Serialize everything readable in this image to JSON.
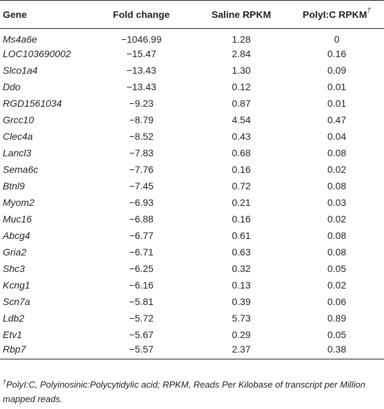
{
  "table": {
    "headers": {
      "gene": "Gene",
      "fold_change": "Fold change",
      "saline": "Saline RPKM",
      "polyic": "PolyI:C RPKM",
      "polyic_mark": "†"
    },
    "rows": [
      {
        "gene": "Ms4a6e",
        "fold": "−1046.99",
        "saline": "1.28",
        "polyic": "0"
      },
      {
        "gene": "LOC103690002",
        "fold": "−15.47",
        "saline": "2.84",
        "polyic": "0.16"
      },
      {
        "gene": "Slco1a4",
        "fold": "−13.43",
        "saline": "1.30",
        "polyic": "0.09"
      },
      {
        "gene": "Ddo",
        "fold": "−13.43",
        "saline": "0.12",
        "polyic": "0.01"
      },
      {
        "gene": "RGD1561034",
        "fold": "−9.23",
        "saline": "0.87",
        "polyic": "0.01"
      },
      {
        "gene": "Grcc10",
        "fold": "−8.79",
        "saline": "4.54",
        "polyic": "0.47"
      },
      {
        "gene": "Clec4a",
        "fold": "−8.52",
        "saline": "0.43",
        "polyic": "0.04"
      },
      {
        "gene": "Lancl3",
        "fold": "−7.83",
        "saline": "0.68",
        "polyic": "0.08"
      },
      {
        "gene": "Sema6c",
        "fold": "−7.76",
        "saline": "0.16",
        "polyic": "0.02"
      },
      {
        "gene": "Btnl9",
        "fold": "−7.45",
        "saline": "0.72",
        "polyic": "0.08"
      },
      {
        "gene": "Myom2",
        "fold": "−6.93",
        "saline": "0.21",
        "polyic": "0.03"
      },
      {
        "gene": "Muc16",
        "fold": "−6.88",
        "saline": "0.16",
        "polyic": "0.02"
      },
      {
        "gene": "Abcg4",
        "fold": "−6.77",
        "saline": "0.61",
        "polyic": "0.08"
      },
      {
        "gene": "Gria2",
        "fold": "−6.71",
        "saline": "0.63",
        "polyic": "0.08"
      },
      {
        "gene": "Shc3",
        "fold": "−6.25",
        "saline": "0.32",
        "polyic": "0.05"
      },
      {
        "gene": "Kcng1",
        "fold": "−6.16",
        "saline": "0.13",
        "polyic": "0.02"
      },
      {
        "gene": "Scn7a",
        "fold": "−5.81",
        "saline": "0.39",
        "polyic": "0.06"
      },
      {
        "gene": "Ldb2",
        "fold": "−5.72",
        "saline": "5.73",
        "polyic": "0.89"
      },
      {
        "gene": "Etv1",
        "fold": "−5.67",
        "saline": "0.29",
        "polyic": "0.05"
      },
      {
        "gene": "Rbp7",
        "fold": "−5.57",
        "saline": "2.37",
        "polyic": "0.38"
      }
    ]
  },
  "footnote": {
    "mark": "†",
    "text": "PolyI:C, Polyinosinic:Polycytidylic acid; RPKM, Reads Per Kilobase of transcript per Million mapped reads."
  }
}
